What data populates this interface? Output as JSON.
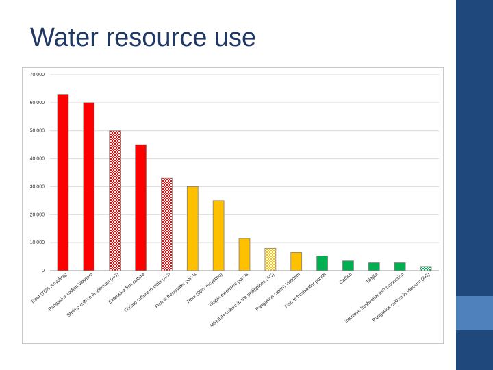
{
  "slide": {
    "title": "Water resource use",
    "accent_colors": {
      "band": "#1f497d",
      "accent": "#4f81bd"
    }
  },
  "chart_data": {
    "type": "bar",
    "title": "",
    "xlabel": "",
    "ylabel": "",
    "ylim": [
      0,
      70000
    ],
    "yticks": [
      0,
      10000,
      20000,
      30000,
      40000,
      50000,
      60000,
      70000
    ],
    "ytick_labels": [
      "0",
      "10,000",
      "20,000",
      "30,000",
      "40,000",
      "50,000",
      "60,000",
      "70,000"
    ],
    "grid": true,
    "legend": "none",
    "categories": [
      "Trout (75% recycling)",
      "Pangasius catfish Vietnam",
      "Shrimp culture in Vietnam (AC)",
      "Extensive fish culture",
      "Shrimp culture in India (AC)",
      "Fish in freshwater ponds",
      "Trout (90% recycling)",
      "Tilapia extensive ponds",
      "MSMDH culture in the philippines (AC)",
      "Pangasius catfish Vietnam",
      "Fish in freshwater ponds",
      "Catfish",
      "Tilapia",
      "Intensive freshwater fish production",
      "Pangasius culture in Vietnam (AC)"
    ],
    "values": [
      63000,
      60000,
      50000,
      45000,
      33000,
      30000,
      25000,
      11500,
      8000,
      6500,
      5300,
      3500,
      2800,
      2800,
      1500
    ],
    "colors": [
      "#ff0000",
      "#ff0000",
      "#ff0000",
      "#ff0000",
      "#ff0000",
      "#ffc000",
      "#ffc000",
      "#ffc000",
      "#ffc000",
      "#ffc000",
      "#00b050",
      "#00b050",
      "#00b050",
      "#00b050",
      "#00b050"
    ],
    "patterned": [
      false,
      false,
      true,
      false,
      true,
      false,
      false,
      false,
      true,
      false,
      false,
      false,
      false,
      false,
      true
    ]
  }
}
